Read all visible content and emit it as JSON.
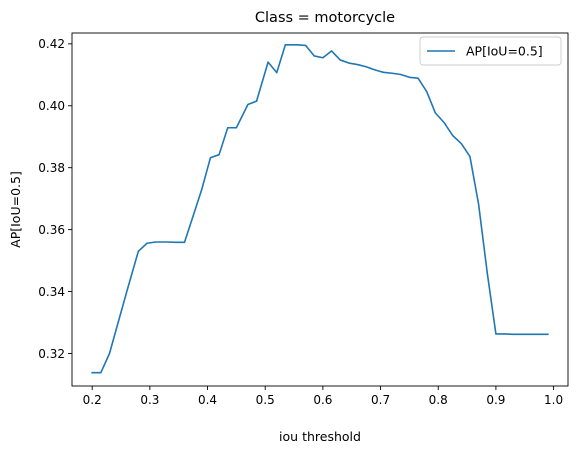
{
  "chart_data": {
    "type": "line",
    "title": "Class = motorcycle",
    "xlabel": "iou threshold",
    "ylabel": "AP[IoU=0.5]",
    "xlim": [
      0.165,
      1.025
    ],
    "ylim": [
      0.3095,
      0.4235
    ],
    "xticks": [
      0.2,
      0.3,
      0.4,
      0.5,
      0.6,
      0.7,
      0.8,
      0.9,
      1.0
    ],
    "xtick_labels": [
      "0.2",
      "0.3",
      "0.4",
      "0.5",
      "0.6",
      "0.7",
      "0.8",
      "0.9",
      "1.0"
    ],
    "yticks": [
      0.32,
      0.34,
      0.36,
      0.38,
      0.4,
      0.42
    ],
    "ytick_labels": [
      "0.32",
      "0.34",
      "0.36",
      "0.38",
      "0.40",
      "0.42"
    ],
    "grid": false,
    "legend_position": "upper right",
    "series": [
      {
        "name": "AP[IoU=0.5]",
        "color": "#1f77b4",
        "x": [
          0.2,
          0.215,
          0.23,
          0.245,
          0.26,
          0.28,
          0.295,
          0.31,
          0.33,
          0.345,
          0.36,
          0.375,
          0.39,
          0.405,
          0.42,
          0.435,
          0.45,
          0.47,
          0.485,
          0.505,
          0.52,
          0.535,
          0.555,
          0.57,
          0.585,
          0.6,
          0.615,
          0.63,
          0.645,
          0.66,
          0.675,
          0.69,
          0.705,
          0.72,
          0.735,
          0.75,
          0.765,
          0.78,
          0.795,
          0.81,
          0.825,
          0.84,
          0.855,
          0.87,
          0.885,
          0.9,
          0.915,
          0.93,
          0.945,
          0.96,
          0.975,
          0.99
        ],
        "y": [
          0.3138,
          0.3138,
          0.32,
          0.33,
          0.34,
          0.353,
          0.3556,
          0.356,
          0.356,
          0.3559,
          0.3559,
          0.3644,
          0.373,
          0.3832,
          0.3842,
          0.3929,
          0.3929,
          0.4004,
          0.4015,
          0.4141,
          0.4107,
          0.4197,
          0.4197,
          0.4195,
          0.4161,
          0.4155,
          0.4177,
          0.4148,
          0.4138,
          0.4133,
          0.4126,
          0.4116,
          0.4108,
          0.4105,
          0.4101,
          0.4092,
          0.4089,
          0.4046,
          0.3977,
          0.3946,
          0.3904,
          0.3878,
          0.3836,
          0.3682,
          0.346,
          0.3263,
          0.3263,
          0.3262,
          0.3262,
          0.3262,
          0.3262,
          0.3262
        ]
      }
    ]
  }
}
